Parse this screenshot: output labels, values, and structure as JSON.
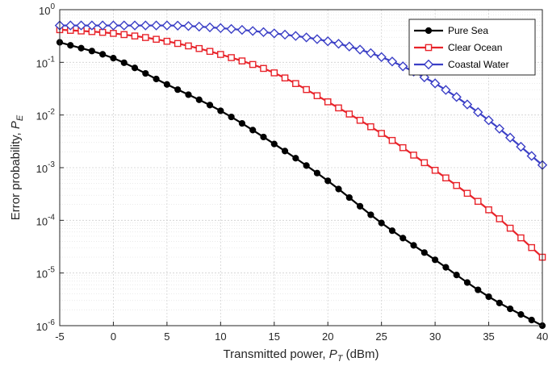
{
  "chart_data": {
    "type": "line",
    "title": "",
    "xlabel": {
      "prefix": "Transmitted power, ",
      "symbol": "P",
      "subscript": "T",
      "suffix": " (dBm)"
    },
    "ylabel": {
      "prefix": "Error probability, ",
      "symbol": "P",
      "subscript": "E"
    },
    "xlim": [
      -5,
      40
    ],
    "ylim": [
      1e-06,
      1
    ],
    "yscale": "log",
    "grid": true,
    "minor_grid": true,
    "legend_position": "top-right",
    "x_ticks": [
      -5,
      0,
      5,
      10,
      15,
      20,
      25,
      30,
      35,
      40
    ],
    "y_ticks": [
      {
        "value": 1e-06,
        "base": "10",
        "exp": "-6"
      },
      {
        "value": 1e-05,
        "base": "10",
        "exp": "-5"
      },
      {
        "value": 0.0001,
        "base": "10",
        "exp": "-4"
      },
      {
        "value": 0.001,
        "base": "10",
        "exp": "-3"
      },
      {
        "value": 0.01,
        "base": "10",
        "exp": "-2"
      },
      {
        "value": 0.1,
        "base": "10",
        "exp": "-1"
      },
      {
        "value": 1,
        "base": "10",
        "exp": "0"
      }
    ],
    "x_start": -5,
    "x_step": 1,
    "series": [
      {
        "name": "Pure Sea",
        "color": "#000000",
        "marker": "circle",
        "log10_points": [
          [
            -5,
            -0.62
          ],
          [
            0,
            -0.92
          ],
          [
            5,
            -1.42
          ],
          [
            10,
            -1.92
          ],
          [
            15,
            -2.55
          ],
          [
            20,
            -3.25
          ],
          [
            25,
            -4.05
          ],
          [
            30,
            -4.75
          ],
          [
            35,
            -5.45
          ],
          [
            40,
            -6.0
          ]
        ]
      },
      {
        "name": "Clear Ocean",
        "color": "#e8232a",
        "marker": "square",
        "log10_points": [
          [
            -5,
            -0.38
          ],
          [
            0,
            -0.45
          ],
          [
            5,
            -0.6
          ],
          [
            10,
            -0.85
          ],
          [
            15,
            -1.2
          ],
          [
            20,
            -1.75
          ],
          [
            25,
            -2.35
          ],
          [
            30,
            -3.05
          ],
          [
            35,
            -3.8
          ],
          [
            40,
            -4.7
          ]
        ]
      },
      {
        "name": "Coastal Water",
        "color": "#3b3fc6",
        "marker": "diamond",
        "log10_points": [
          [
            -5,
            -0.3
          ],
          [
            0,
            -0.3
          ],
          [
            5,
            -0.3
          ],
          [
            10,
            -0.35
          ],
          [
            15,
            -0.45
          ],
          [
            20,
            -0.6
          ],
          [
            25,
            -0.9
          ],
          [
            30,
            -1.4
          ],
          [
            35,
            -2.1
          ],
          [
            40,
            -2.95
          ]
        ]
      }
    ]
  }
}
